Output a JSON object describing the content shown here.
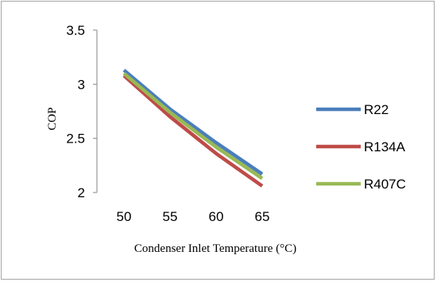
{
  "chart_data": {
    "type": "line",
    "x": [
      50,
      55,
      60,
      65
    ],
    "series": [
      {
        "name": "R22",
        "color": "#4a7ebb",
        "values": [
          3.13,
          2.77,
          2.46,
          2.17
        ]
      },
      {
        "name": "R134A",
        "color": "#be4b48",
        "values": [
          3.08,
          2.7,
          2.36,
          2.06
        ]
      },
      {
        "name": "R407C",
        "color": "#98b954",
        "values": [
          3.1,
          2.74,
          2.42,
          2.13
        ]
      }
    ],
    "xlabel": "Condenser Inlet Temperature (°C)",
    "ylabel": "COP",
    "ylim": [
      2,
      3.5
    ],
    "yticks": [
      "2",
      "2.5",
      "3",
      "3.5"
    ],
    "xticks": [
      "50",
      "55",
      "60",
      "65"
    ],
    "grid": false,
    "legend": "right"
  }
}
